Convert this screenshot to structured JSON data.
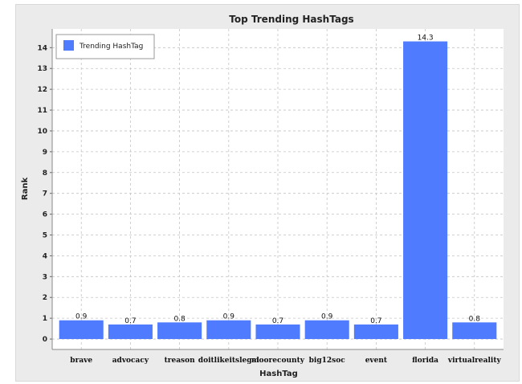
{
  "chart_data": {
    "type": "bar",
    "title": "Top Trending HashTags",
    "xlabel": "HashTag",
    "ylabel": "Rank",
    "categories": [
      "brave",
      "advocacy",
      "treason",
      "doitlikeitslegal",
      "moorecounty",
      "big12soc",
      "event",
      "florida",
      "virtualreality"
    ],
    "series": [
      {
        "name": "Trending HashTag",
        "values": [
          0.9,
          0.7,
          0.8,
          0.9,
          0.7,
          0.9,
          0.7,
          14.3,
          0.8
        ],
        "labels": [
          "0.9",
          "0.7",
          "0.8",
          "0.9",
          "0.7",
          "0.9",
          "0.7",
          "14.3",
          "0.8"
        ]
      }
    ],
    "ylim": [
      -0.5,
      14.9
    ],
    "yticks": [
      0,
      1,
      2,
      3,
      4,
      5,
      6,
      7,
      8,
      9,
      10,
      11,
      12,
      13,
      14
    ],
    "grid": true,
    "legend": "top-left",
    "colors": {
      "bar": "#4f7bff",
      "plot_bg": "#ffffff",
      "grid": "#c4c4c4"
    }
  }
}
